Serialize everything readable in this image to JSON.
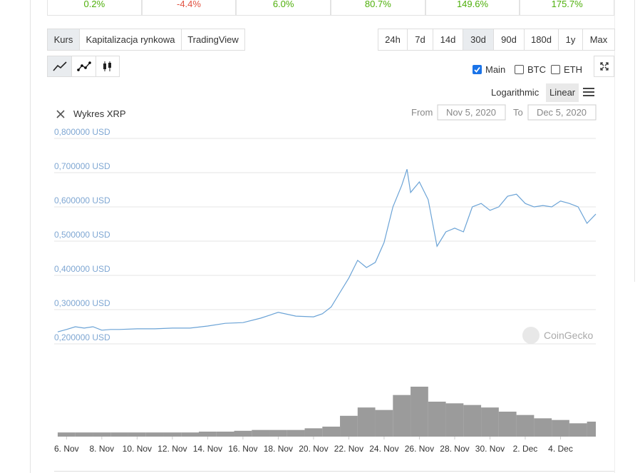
{
  "stats": [
    {
      "text": "0.2%",
      "color": "#4eaf0a"
    },
    {
      "text": "-4.4%",
      "color": "#e15241"
    },
    {
      "text": "6.0%",
      "color": "#4eaf0a"
    },
    {
      "text": "80.7%",
      "color": "#4eaf0a"
    },
    {
      "text": "149.6%",
      "color": "#4eaf0a"
    },
    {
      "text": "175.7%",
      "color": "#4eaf0a"
    }
  ],
  "tabs": [
    "Kurs",
    "Kapitalizacja rynkowa",
    "TradingView"
  ],
  "active_tab": 0,
  "ranges": [
    "24h",
    "7d",
    "14d",
    "30d",
    "90d",
    "180d",
    "1y",
    "Max"
  ],
  "active_range": 3,
  "toggles": [
    {
      "label": "Main",
      "checked": true
    },
    {
      "label": "BTC",
      "checked": false
    },
    {
      "label": "ETH",
      "checked": false
    }
  ],
  "scales": [
    "Logarithmic",
    "Linear"
  ],
  "active_scale": 1,
  "chart_data": {
    "type": "line",
    "title": "Wykres XRP",
    "from_label": "From",
    "from": "Nov 5, 2020",
    "to_label": "To",
    "to": "Dec 5, 2020",
    "watermark": "CoinGecko",
    "color": "#6ba3d6",
    "log_scale": false,
    "grid": true,
    "x": [
      0.5,
      1,
      1.5,
      2,
      2.5,
      3,
      3.5,
      4,
      5,
      6,
      7,
      8,
      9,
      10,
      11,
      12,
      13,
      14,
      15,
      15.5,
      16,
      16.5,
      17,
      17.5,
      18,
      18.5,
      19,
      19.5,
      20,
      20.3,
      20.5,
      21,
      21.5,
      22,
      22.5,
      23,
      23.5,
      24,
      24.5,
      25,
      25.5,
      26,
      26.5,
      27,
      27.5,
      28,
      28.5,
      29,
      29.5,
      30,
      30.5,
      31
    ],
    "values": [
      0.235,
      0.242,
      0.25,
      0.246,
      0.25,
      0.24,
      0.242,
      0.242,
      0.244,
      0.244,
      0.246,
      0.246,
      0.252,
      0.26,
      0.262,
      0.275,
      0.292,
      0.281,
      0.279,
      0.288,
      0.308,
      0.35,
      0.392,
      0.444,
      0.423,
      0.438,
      0.496,
      0.6,
      0.663,
      0.71,
      0.642,
      0.673,
      0.621,
      0.485,
      0.527,
      0.538,
      0.527,
      0.6,
      0.61,
      0.59,
      0.6,
      0.631,
      0.637,
      0.61,
      0.6,
      0.604,
      0.6,
      0.617,
      0.61,
      0.6,
      0.552,
      0.579
    ],
    "xlim": [
      0.3,
      31
    ],
    "ylim": [
      0.2,
      0.8
    ],
    "yticks": [
      {
        "value": 0.8,
        "label": "0,800000 USD"
      },
      {
        "value": 0.7,
        "label": "0,700000 USD"
      },
      {
        "value": 0.6,
        "label": "0,600000 USD"
      },
      {
        "value": 0.5,
        "label": "0,500000 USD"
      },
      {
        "value": 0.4,
        "label": "0,400000 USD"
      },
      {
        "value": 0.3,
        "label": "0,300000 USD"
      },
      {
        "value": 0.2,
        "label": "0,200000 USD"
      }
    ],
    "xticks": [
      {
        "value": 1,
        "label": "6. Nov"
      },
      {
        "value": 3,
        "label": "8. Nov"
      },
      {
        "value": 5,
        "label": "10. Nov"
      },
      {
        "value": 7,
        "label": "12. Nov"
      },
      {
        "value": 9,
        "label": "14. Nov"
      },
      {
        "value": 11,
        "label": "16. Nov"
      },
      {
        "value": 13,
        "label": "18. Nov"
      },
      {
        "value": 15,
        "label": "20. Nov"
      },
      {
        "value": 17,
        "label": "22. Nov"
      },
      {
        "value": 19,
        "label": "24. Nov"
      },
      {
        "value": 21,
        "label": "26. Nov"
      },
      {
        "value": 23,
        "label": "28. Nov"
      },
      {
        "value": 25,
        "label": "30. Nov"
      },
      {
        "value": 27,
        "label": "2. Dec"
      },
      {
        "value": 29,
        "label": "4. Dec"
      }
    ],
    "volume": {
      "color": "#8a8a8a",
      "x": [
        1,
        2,
        3,
        4,
        5,
        6,
        7,
        8,
        9,
        10,
        11,
        12,
        13,
        14,
        15,
        16,
        17,
        18,
        19,
        20,
        21,
        22,
        23,
        24,
        25,
        26,
        27,
        28,
        29,
        30,
        31
      ],
      "values": [
        5,
        5,
        5,
        5,
        5,
        5,
        5,
        5,
        6,
        6,
        7,
        8,
        8,
        8,
        10,
        12,
        25,
        35,
        32,
        50,
        60,
        42,
        40,
        38,
        35,
        30,
        26,
        22,
        20,
        16,
        18
      ]
    }
  }
}
